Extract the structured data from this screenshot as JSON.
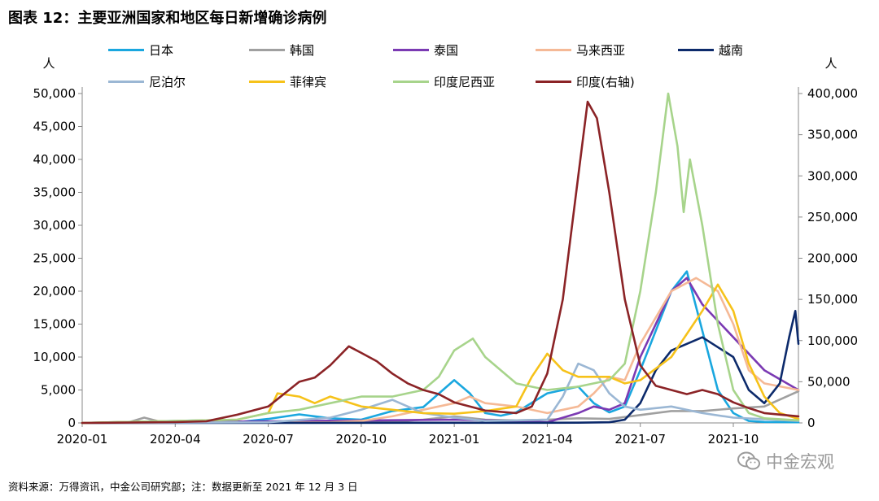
{
  "title": "图表 12：主要亚洲国家和地区每日新增确诊病例",
  "source": "资料来源：万得资讯，中金公司研究部；注：数据更新至 2021 年 12 月 3 日",
  "watermark": "中金宏观",
  "watermark_icon": "wechat-icon",
  "chart_data": {
    "type": "line",
    "left_axis": {
      "label": "人",
      "min": 0,
      "max": 50000,
      "ticks": [
        "0",
        "5,000",
        "10,000",
        "15,000",
        "20,000",
        "25,000",
        "30,000",
        "35,000",
        "40,000",
        "45,000",
        "50,000"
      ]
    },
    "right_axis": {
      "label": "人",
      "min": 0,
      "max": 400000,
      "ticks": [
        "0",
        "50,000",
        "100,000",
        "150,000",
        "200,000",
        "250,000",
        "300,000",
        "350,000",
        "400,000"
      ]
    },
    "x_ticks": [
      "2020-01",
      "2020-04",
      "2020-07",
      "2020-10",
      "2021-01",
      "2021-04",
      "2021-07",
      "2021-10"
    ],
    "x_range_months": [
      0,
      23.1
    ],
    "grid": false,
    "legend_position": "top",
    "series": [
      {
        "name": "日本",
        "color": "#1aa7df",
        "axis": "left",
        "points": [
          [
            0,
            0
          ],
          [
            3,
            300
          ],
          [
            4,
            400
          ],
          [
            5,
            100
          ],
          [
            6,
            600
          ],
          [
            7,
            1300
          ],
          [
            8,
            700
          ],
          [
            9,
            500
          ],
          [
            10,
            1800
          ],
          [
            11,
            2400
          ],
          [
            12,
            6500
          ],
          [
            12.5,
            4500
          ],
          [
            13,
            1500
          ],
          [
            13.5,
            1100
          ],
          [
            14,
            1600
          ],
          [
            15,
            4500
          ],
          [
            16,
            5500
          ],
          [
            16.5,
            3000
          ],
          [
            17,
            1600
          ],
          [
            17.5,
            2500
          ],
          [
            18,
            8000
          ],
          [
            19,
            20000
          ],
          [
            19.5,
            23000
          ],
          [
            20,
            14000
          ],
          [
            20.5,
            5000
          ],
          [
            21,
            1500
          ],
          [
            21.5,
            300
          ],
          [
            22,
            150
          ],
          [
            23.1,
            100
          ]
        ]
      },
      {
        "name": "韩国",
        "color": "#a0a0a0",
        "axis": "left",
        "points": [
          [
            0,
            0
          ],
          [
            1.5,
            100
          ],
          [
            2,
            800
          ],
          [
            2.5,
            200
          ],
          [
            3,
            50
          ],
          [
            6,
            100
          ],
          [
            7.5,
            300
          ],
          [
            8,
            200
          ],
          [
            9,
            100
          ],
          [
            10,
            200
          ],
          [
            11,
            500
          ],
          [
            12,
            1000
          ],
          [
            13,
            500
          ],
          [
            14,
            400
          ],
          [
            15,
            500
          ],
          [
            16,
            700
          ],
          [
            17,
            600
          ],
          [
            18,
            1200
          ],
          [
            19,
            1800
          ],
          [
            20,
            1800
          ],
          [
            21,
            2200
          ],
          [
            22,
            2500
          ],
          [
            23.1,
            4800
          ]
        ]
      },
      {
        "name": "泰国",
        "color": "#7b3ab3",
        "axis": "left",
        "points": [
          [
            0,
            0
          ],
          [
            12,
            500
          ],
          [
            14,
            300
          ],
          [
            15,
            100
          ],
          [
            16,
            1500
          ],
          [
            16.5,
            2500
          ],
          [
            17,
            2000
          ],
          [
            17.5,
            3000
          ],
          [
            18,
            10000
          ],
          [
            19,
            20000
          ],
          [
            19.5,
            22000
          ],
          [
            20,
            18000
          ],
          [
            21,
            13000
          ],
          [
            22,
            8000
          ],
          [
            23.1,
            5000
          ]
        ]
      },
      {
        "name": "马来西亚",
        "color": "#f5b996",
        "axis": "left",
        "points": [
          [
            0,
            0
          ],
          [
            6,
            50
          ],
          [
            8,
            100
          ],
          [
            9,
            300
          ],
          [
            10,
            1000
          ],
          [
            11,
            2000
          ],
          [
            12,
            3000
          ],
          [
            12.5,
            4000
          ],
          [
            13,
            3000
          ],
          [
            14,
            2500
          ],
          [
            15,
            1500
          ],
          [
            16,
            2500
          ],
          [
            16.5,
            4500
          ],
          [
            17,
            7000
          ],
          [
            17.5,
            6500
          ],
          [
            18,
            12000
          ],
          [
            19,
            20000
          ],
          [
            19.8,
            22000
          ],
          [
            20.5,
            20000
          ],
          [
            21,
            15000
          ],
          [
            21.5,
            8000
          ],
          [
            22,
            6000
          ],
          [
            23.1,
            5000
          ]
        ]
      },
      {
        "name": "越南",
        "color": "#0c2a6b",
        "axis": "left",
        "points": [
          [
            0,
            0
          ],
          [
            15,
            20
          ],
          [
            16,
            40
          ],
          [
            17,
            100
          ],
          [
            17.5,
            500
          ],
          [
            18,
            3000
          ],
          [
            18.5,
            8000
          ],
          [
            19,
            11000
          ],
          [
            19.5,
            12000
          ],
          [
            20,
            13000
          ],
          [
            21,
            10000
          ],
          [
            21.5,
            5000
          ],
          [
            22,
            3000
          ],
          [
            22.5,
            6000
          ],
          [
            22.8,
            13000
          ],
          [
            23,
            17000
          ],
          [
            23.1,
            12000
          ]
        ]
      },
      {
        "name": "尼泊尔",
        "color": "#9bb7d4",
        "axis": "left",
        "points": [
          [
            0,
            0
          ],
          [
            6,
            100
          ],
          [
            8,
            800
          ],
          [
            9,
            2000
          ],
          [
            10,
            3500
          ],
          [
            10.5,
            2500
          ],
          [
            11,
            1500
          ],
          [
            12,
            800
          ],
          [
            13,
            300
          ],
          [
            15,
            500
          ],
          [
            15.5,
            4000
          ],
          [
            16,
            9000
          ],
          [
            16.5,
            8000
          ],
          [
            17,
            4500
          ],
          [
            17.5,
            2500
          ],
          [
            18,
            2000
          ],
          [
            19,
            2500
          ],
          [
            20,
            1500
          ],
          [
            21,
            800
          ],
          [
            23.1,
            300
          ]
        ]
      },
      {
        "name": "菲律宾",
        "color": "#f6c21a",
        "axis": "left",
        "points": [
          [
            0,
            0
          ],
          [
            5,
            500
          ],
          [
            6,
            1500
          ],
          [
            6.3,
            4500
          ],
          [
            7,
            4000
          ],
          [
            7.5,
            3000
          ],
          [
            8,
            4000
          ],
          [
            9,
            2500
          ],
          [
            10,
            2000
          ],
          [
            11,
            1500
          ],
          [
            12,
            1400
          ],
          [
            13,
            1800
          ],
          [
            14,
            2500
          ],
          [
            14.5,
            7000
          ],
          [
            15,
            10500
          ],
          [
            15.5,
            8000
          ],
          [
            16,
            7000
          ],
          [
            17,
            7000
          ],
          [
            17.5,
            6000
          ],
          [
            18,
            6500
          ],
          [
            19,
            10000
          ],
          [
            20,
            17000
          ],
          [
            20.5,
            21000
          ],
          [
            21,
            17000
          ],
          [
            21.5,
            9000
          ],
          [
            22,
            4000
          ],
          [
            22.5,
            1500
          ],
          [
            23.1,
            600
          ]
        ]
      },
      {
        "name": "印度尼西亚",
        "color": "#a7d48b",
        "axis": "left",
        "points": [
          [
            0,
            0
          ],
          [
            5,
            500
          ],
          [
            6,
            1500
          ],
          [
            7,
            2000
          ],
          [
            8,
            3000
          ],
          [
            9,
            4000
          ],
          [
            10,
            4000
          ],
          [
            11,
            5000
          ],
          [
            11.5,
            7000
          ],
          [
            12,
            11000
          ],
          [
            12.6,
            12800
          ],
          [
            13,
            10000
          ],
          [
            13.5,
            8000
          ],
          [
            14,
            6000
          ],
          [
            15,
            5000
          ],
          [
            16,
            5500
          ],
          [
            17,
            6500
          ],
          [
            17.5,
            9000
          ],
          [
            18,
            20000
          ],
          [
            18.5,
            35000
          ],
          [
            18.9,
            50000
          ],
          [
            19.2,
            42000
          ],
          [
            19.4,
            32000
          ],
          [
            19.6,
            40000
          ],
          [
            20,
            30000
          ],
          [
            20.5,
            15000
          ],
          [
            21,
            5000
          ],
          [
            21.5,
            1500
          ],
          [
            22,
            700
          ],
          [
            23.1,
            400
          ]
        ]
      },
      {
        "name": "印度(右轴)",
        "color": "#8b2326",
        "axis": "right",
        "points": [
          [
            0,
            0
          ],
          [
            3,
            1000
          ],
          [
            4,
            2000
          ],
          [
            5,
            10000
          ],
          [
            6,
            20000
          ],
          [
            7,
            50000
          ],
          [
            7.5,
            55000
          ],
          [
            8,
            70000
          ],
          [
            8.6,
            93000
          ],
          [
            9,
            85000
          ],
          [
            9.5,
            75000
          ],
          [
            10,
            60000
          ],
          [
            10.5,
            48000
          ],
          [
            11,
            40000
          ],
          [
            11.5,
            35000
          ],
          [
            12,
            25000
          ],
          [
            13,
            15000
          ],
          [
            14,
            12000
          ],
          [
            14.5,
            20000
          ],
          [
            15,
            60000
          ],
          [
            15.5,
            150000
          ],
          [
            16,
            300000
          ],
          [
            16.3,
            390000
          ],
          [
            16.6,
            370000
          ],
          [
            17,
            280000
          ],
          [
            17.5,
            150000
          ],
          [
            18,
            70000
          ],
          [
            18.5,
            45000
          ],
          [
            19,
            40000
          ],
          [
            19.5,
            35000
          ],
          [
            20,
            40000
          ],
          [
            20.5,
            35000
          ],
          [
            21,
            25000
          ],
          [
            21.5,
            18000
          ],
          [
            22,
            12000
          ],
          [
            23.1,
            8000
          ]
        ]
      }
    ]
  }
}
